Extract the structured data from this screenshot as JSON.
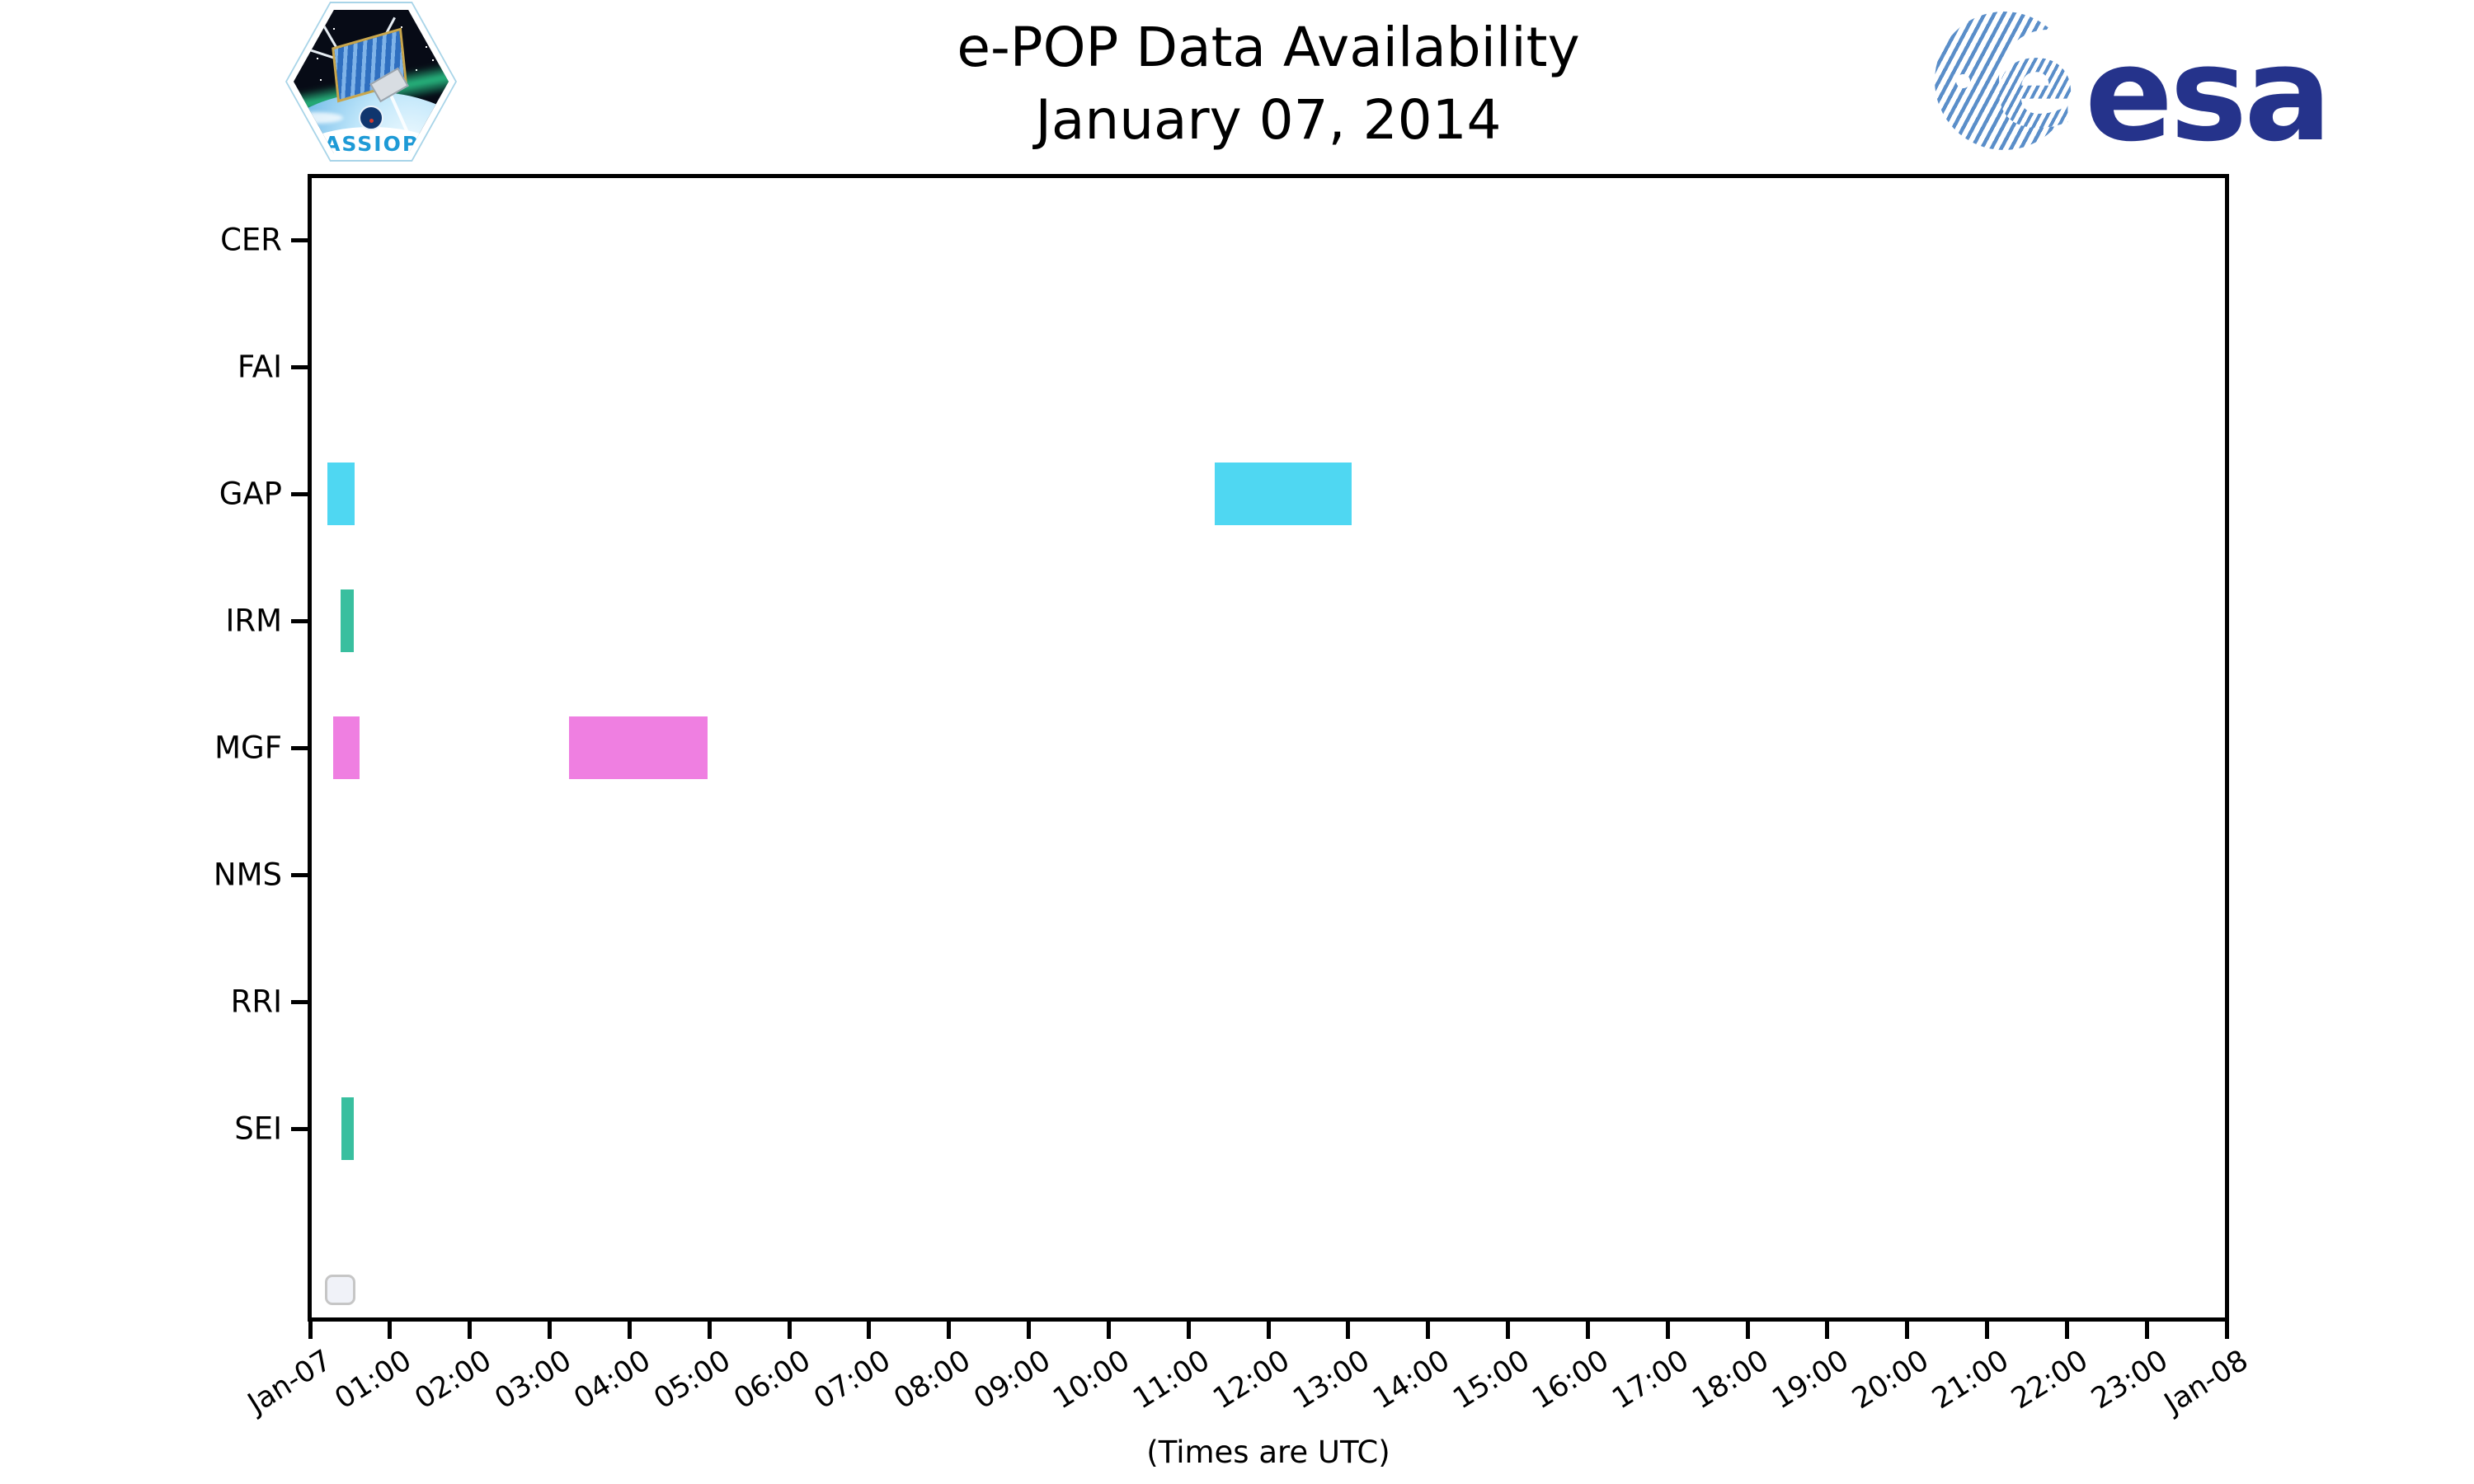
{
  "header": {
    "title_line1": "e-POP Data Availability",
    "title_line2": "January 07, 2014"
  },
  "logos": {
    "cassiope_text": "CASSIOPE",
    "esa_text": "esa"
  },
  "axis_caption": "(Times are UTC)",
  "chart_data": {
    "type": "bar",
    "subtype": "gantt-timeline",
    "title": "e-POP Data Availability",
    "subtitle": "January 07, 2014",
    "xlabel": "(Times are UTC)",
    "ylabel": "",
    "grid": false,
    "x_range_hours": [
      0,
      24
    ],
    "x_ticks": [
      "Jan-07",
      "01:00",
      "02:00",
      "03:00",
      "04:00",
      "05:00",
      "06:00",
      "07:00",
      "08:00",
      "09:00",
      "10:00",
      "11:00",
      "12:00",
      "13:00",
      "14:00",
      "15:00",
      "16:00",
      "17:00",
      "18:00",
      "19:00",
      "20:00",
      "21:00",
      "22:00",
      "23:00",
      "Jan-08"
    ],
    "instruments": [
      "CER",
      "FAI",
      "GAP",
      "IRM",
      "MGF",
      "NMS",
      "RRI",
      "SEI"
    ],
    "instrument_colors": {
      "GAP": "#4fd7f2",
      "IRM": "#39bf9f",
      "MGF": "#ef7fe1",
      "SEI": "#39bf9f"
    },
    "bars": [
      {
        "instrument": "GAP",
        "start_hour": 0.22,
        "end_hour": 0.56,
        "start": "00:13",
        "end": "00:34",
        "color": "#4fd7f2"
      },
      {
        "instrument": "GAP",
        "start_hour": 11.33,
        "end_hour": 13.04,
        "start": "11:20",
        "end": "13:02",
        "color": "#4fd7f2"
      },
      {
        "instrument": "IRM",
        "start_hour": 0.38,
        "end_hour": 0.55,
        "start": "00:23",
        "end": "00:33",
        "color": "#39bf9f"
      },
      {
        "instrument": "MGF",
        "start_hour": 0.29,
        "end_hour": 0.62,
        "start": "00:17",
        "end": "00:37",
        "color": "#ef7fe1"
      },
      {
        "instrument": "MGF",
        "start_hour": 3.24,
        "end_hour": 4.98,
        "start": "03:14",
        "end": "04:59",
        "color": "#ef7fe1"
      },
      {
        "instrument": "SEI",
        "start_hour": 0.39,
        "end_hour": 0.55,
        "start": "00:23",
        "end": "00:33",
        "color": "#39bf9f"
      }
    ],
    "legend": {
      "present": true,
      "entries": [],
      "position": "lower-left",
      "note": "empty legend box"
    }
  }
}
